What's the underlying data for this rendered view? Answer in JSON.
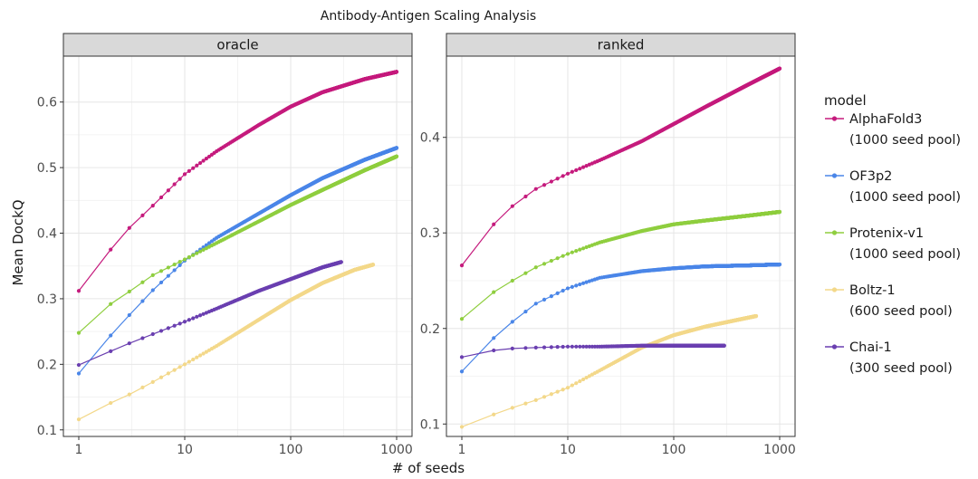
{
  "chart_data": {
    "type": "line",
    "title": "Antibody-Antigen Scaling Analysis",
    "xlabel": "# of seeds",
    "ylabel": "Mean DockQ",
    "xscale": "log10",
    "xlim": [
      1,
      1000
    ],
    "xticks": [
      "1",
      "10",
      "100",
      "1000"
    ],
    "legend_title": "model",
    "legend_position": "right",
    "grid": true,
    "series_meta": [
      {
        "name": "AlphaFold3",
        "sublabel": "(1000 seed pool)",
        "color": "#c51b7d"
      },
      {
        "name": "OF3p2",
        "sublabel": "(1000 seed pool)",
        "color": "#4a86e8"
      },
      {
        "name": "Protenix-v1",
        "sublabel": "(1000 seed pool)",
        "color": "#8fce3f"
      },
      {
        "name": "Boltz-1",
        "sublabel": "(600 seed pool)",
        "color": "#f3d88a"
      },
      {
        "name": "Chai-1",
        "sublabel": "(300 seed pool)",
        "color": "#6a3fb0"
      }
    ],
    "panels": [
      {
        "label": "oracle",
        "ylim": [
          0.09,
          0.67
        ],
        "yticks": [
          "0.1",
          "0.2",
          "0.3",
          "0.4",
          "0.5",
          "0.6"
        ],
        "series": [
          {
            "name": "AlphaFold3",
            "max_seeds": 1000,
            "anchors": [
              [
                1,
                0.312
              ],
              [
                2,
                0.375
              ],
              [
                3,
                0.408
              ],
              [
                5,
                0.442
              ],
              [
                10,
                0.49
              ],
              [
                20,
                0.525
              ],
              [
                50,
                0.565
              ],
              [
                100,
                0.593
              ],
              [
                200,
                0.615
              ],
              [
                500,
                0.635
              ],
              [
                1000,
                0.646
              ]
            ]
          },
          {
            "name": "OF3p2",
            "max_seeds": 1000,
            "anchors": [
              [
                1,
                0.186
              ],
              [
                2,
                0.244
              ],
              [
                3,
                0.275
              ],
              [
                5,
                0.313
              ],
              [
                10,
                0.358
              ],
              [
                20,
                0.393
              ],
              [
                50,
                0.43
              ],
              [
                100,
                0.458
              ],
              [
                200,
                0.484
              ],
              [
                500,
                0.512
              ],
              [
                1000,
                0.53
              ]
            ]
          },
          {
            "name": "Protenix-v1",
            "max_seeds": 1000,
            "anchors": [
              [
                1,
                0.248
              ],
              [
                2,
                0.292
              ],
              [
                3,
                0.311
              ],
              [
                5,
                0.336
              ],
              [
                10,
                0.36
              ],
              [
                20,
                0.385
              ],
              [
                50,
                0.418
              ],
              [
                100,
                0.443
              ],
              [
                200,
                0.466
              ],
              [
                500,
                0.496
              ],
              [
                1000,
                0.517
              ]
            ]
          },
          {
            "name": "Boltz-1",
            "max_seeds": 600,
            "anchors": [
              [
                1,
                0.116
              ],
              [
                2,
                0.141
              ],
              [
                3,
                0.154
              ],
              [
                5,
                0.173
              ],
              [
                10,
                0.2
              ],
              [
                20,
                0.228
              ],
              [
                50,
                0.268
              ],
              [
                100,
                0.298
              ],
              [
                200,
                0.324
              ],
              [
                400,
                0.344
              ],
              [
                600,
                0.352
              ]
            ]
          },
          {
            "name": "Chai-1",
            "max_seeds": 300,
            "anchors": [
              [
                1,
                0.199
              ],
              [
                2,
                0.22
              ],
              [
                3,
                0.232
              ],
              [
                5,
                0.246
              ],
              [
                10,
                0.265
              ],
              [
                20,
                0.285
              ],
              [
                50,
                0.312
              ],
              [
                100,
                0.33
              ],
              [
                200,
                0.348
              ],
              [
                300,
                0.356
              ]
            ]
          }
        ]
      },
      {
        "label": "ranked",
        "ylim": [
          0.087,
          0.485
        ],
        "yticks": [
          "0.1",
          "0.2",
          "0.3",
          "0.4"
        ],
        "series": [
          {
            "name": "AlphaFold3",
            "max_seeds": 1000,
            "anchors": [
              [
                1,
                0.266
              ],
              [
                2,
                0.309
              ],
              [
                3,
                0.328
              ],
              [
                5,
                0.346
              ],
              [
                10,
                0.362
              ],
              [
                20,
                0.376
              ],
              [
                50,
                0.396
              ],
              [
                100,
                0.414
              ],
              [
                200,
                0.432
              ],
              [
                500,
                0.455
              ],
              [
                1000,
                0.472
              ]
            ]
          },
          {
            "name": "OF3p2",
            "max_seeds": 1000,
            "anchors": [
              [
                1,
                0.155
              ],
              [
                2,
                0.19
              ],
              [
                3,
                0.207
              ],
              [
                5,
                0.226
              ],
              [
                10,
                0.242
              ],
              [
                20,
                0.253
              ],
              [
                50,
                0.26
              ],
              [
                100,
                0.263
              ],
              [
                200,
                0.265
              ],
              [
                500,
                0.266
              ],
              [
                1000,
                0.267
              ]
            ]
          },
          {
            "name": "Protenix-v1",
            "max_seeds": 1000,
            "anchors": [
              [
                1,
                0.21
              ],
              [
                2,
                0.238
              ],
              [
                3,
                0.25
              ],
              [
                5,
                0.264
              ],
              [
                10,
                0.278
              ],
              [
                20,
                0.29
              ],
              [
                50,
                0.302
              ],
              [
                100,
                0.309
              ],
              [
                200,
                0.313
              ],
              [
                500,
                0.318
              ],
              [
                1000,
                0.322
              ]
            ]
          },
          {
            "name": "Boltz-1",
            "max_seeds": 600,
            "anchors": [
              [
                1,
                0.097
              ],
              [
                2,
                0.11
              ],
              [
                3,
                0.117
              ],
              [
                5,
                0.125
              ],
              [
                10,
                0.138
              ],
              [
                20,
                0.156
              ],
              [
                50,
                0.18
              ],
              [
                100,
                0.193
              ],
              [
                200,
                0.202
              ],
              [
                400,
                0.209
              ],
              [
                600,
                0.213
              ]
            ]
          },
          {
            "name": "Chai-1",
            "max_seeds": 300,
            "anchors": [
              [
                1,
                0.17
              ],
              [
                2,
                0.177
              ],
              [
                3,
                0.179
              ],
              [
                5,
                0.18
              ],
              [
                10,
                0.181
              ],
              [
                20,
                0.181
              ],
              [
                50,
                0.182
              ],
              [
                100,
                0.182
              ],
              [
                200,
                0.182
              ],
              [
                300,
                0.182
              ]
            ]
          }
        ]
      }
    ]
  }
}
